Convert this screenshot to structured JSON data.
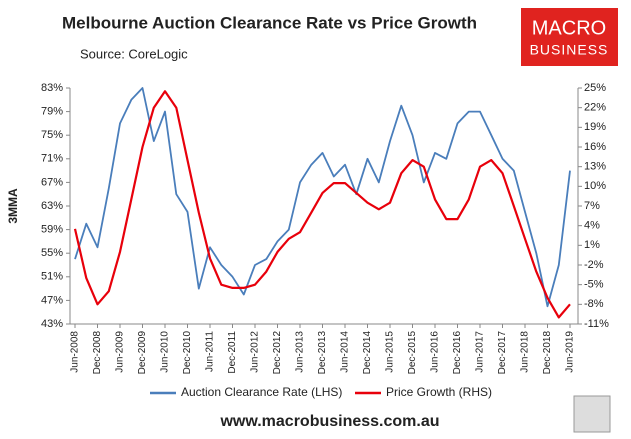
{
  "chart_data": {
    "type": "line",
    "title": "Melbourne Auction Clearance Rate vs Price Growth",
    "subtitle": "Source: CoreLogic",
    "ylabel": "3MMA",
    "logo_text": [
      "MACRO",
      "BUSINESS"
    ],
    "footer": "www.macrobusiness.com.au",
    "categories": [
      "Jun-2008",
      null,
      "Dec-2008",
      null,
      "Jun-2009",
      null,
      "Dec-2009",
      null,
      "Jun-2010",
      null,
      "Dec-2010",
      null,
      "Jun-2011",
      null,
      "Dec-2011",
      null,
      "Jun-2012",
      null,
      "Dec-2012",
      null,
      "Jun-2013",
      null,
      "Dec-2013",
      null,
      "Jun-2014",
      null,
      "Dec-2014",
      null,
      "Jun-2015",
      null,
      "Dec-2015",
      null,
      "Jun-2016",
      null,
      "Dec-2016",
      null,
      "Jun-2017",
      null,
      "Dec-2017",
      null,
      "Jun-2018",
      null,
      "Dec-2018",
      null,
      "Jun-2019"
    ],
    "series": [
      {
        "name": "Auction Clearance Rate (LHS)",
        "color": "#4a7ebb",
        "axis": "y",
        "values": [
          54,
          60,
          56,
          66,
          77,
          81,
          83,
          74,
          79,
          65,
          62,
          49,
          56,
          53,
          51,
          48,
          53,
          54,
          57,
          59,
          67,
          70,
          72,
          68,
          70,
          65,
          71,
          67,
          74,
          80,
          75,
          67,
          72,
          71,
          77,
          79,
          79,
          75,
          71,
          69,
          62,
          55,
          46,
          53,
          69
        ]
      },
      {
        "name": "Price Growth (RHS)",
        "color": "#e8000b",
        "axis": "y2",
        "values": [
          3.5,
          -4,
          -8,
          -6,
          0,
          8,
          16,
          22,
          24.5,
          22,
          14,
          6,
          -1,
          -5,
          -5.5,
          -5.5,
          -5,
          -3,
          0,
          2,
          3,
          6,
          9,
          10.5,
          10.5,
          9,
          7.5,
          6.5,
          7.5,
          12,
          14,
          13,
          8,
          5,
          5,
          8,
          13,
          14,
          12,
          7,
          2,
          -3,
          -7,
          -10,
          -8
        ]
      }
    ],
    "ylim": [
      43,
      83
    ],
    "yticks": [
      {
        "value": 43,
        "label": "43%"
      },
      {
        "value": 47,
        "label": "47%"
      },
      {
        "value": 51,
        "label": "51%"
      },
      {
        "value": 55,
        "label": "55%"
      },
      {
        "value": 59,
        "label": "59%"
      },
      {
        "value": 63,
        "label": "63%"
      },
      {
        "value": 67,
        "label": "67%"
      },
      {
        "value": 71,
        "label": "71%"
      },
      {
        "value": 75,
        "label": "75%"
      },
      {
        "value": 79,
        "label": "79%"
      },
      {
        "value": 83,
        "label": "83%"
      }
    ],
    "y2lim": [
      -11,
      25
    ],
    "y2ticks": [
      {
        "value": -11,
        "label": "-11%"
      },
      {
        "value": -8,
        "label": "-8%"
      },
      {
        "value": -5,
        "label": "-5%"
      },
      {
        "value": -2,
        "label": "-2%"
      },
      {
        "value": 1,
        "label": "1%"
      },
      {
        "value": 4,
        "label": "4%"
      },
      {
        "value": 7,
        "label": "7%"
      },
      {
        "value": 10,
        "label": "10%"
      },
      {
        "value": 13,
        "label": "13%"
      },
      {
        "value": 16,
        "label": "16%"
      },
      {
        "value": 19,
        "label": "19%"
      },
      {
        "value": 22,
        "label": "22%"
      },
      {
        "value": 25,
        "label": "25%"
      }
    ],
    "grid": false
  }
}
